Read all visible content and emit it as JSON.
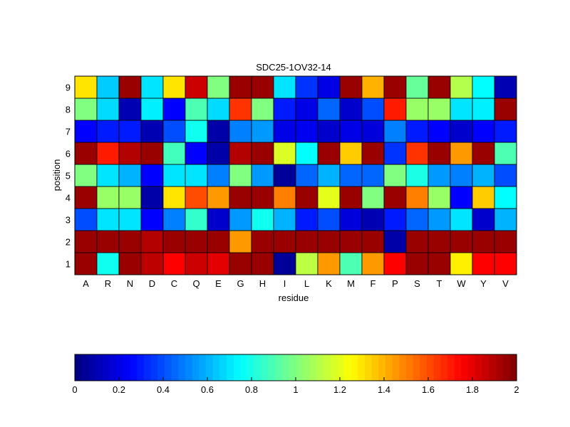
{
  "chart_data": [
    {
      "type": "heatmap",
      "title": "SDC25-1OV32-14",
      "xlabel": "residue",
      "ylabel": "position",
      "x_categories": [
        "A",
        "R",
        "N",
        "D",
        "C",
        "Q",
        "E",
        "G",
        "H",
        "I",
        "L",
        "K",
        "M",
        "F",
        "P",
        "S",
        "T",
        "W",
        "Y",
        "V"
      ],
      "y_categories": [
        "1",
        "2",
        "3",
        "4",
        "5",
        "6",
        "7",
        "8",
        "9"
      ],
      "colormap": "jet",
      "clim": [
        0,
        2
      ],
      "values": [
        [
          1.95,
          0.78,
          1.95,
          1.88,
          1.75,
          1.85,
          1.8,
          1.95,
          1.95,
          0.05,
          1.12,
          1.45,
          0.9,
          1.45,
          1.75,
          1.95,
          1.95,
          1.28,
          1.75,
          1.75
        ],
        [
          1.95,
          1.95,
          1.95,
          1.9,
          1.95,
          1.95,
          1.95,
          1.45,
          1.95,
          1.95,
          1.95,
          1.95,
          1.95,
          1.95,
          0.08,
          1.95,
          1.95,
          1.95,
          1.95,
          1.95
        ],
        [
          0.4,
          0.7,
          0.7,
          0.25,
          0.5,
          0.85,
          0.15,
          0.55,
          0.78,
          0.6,
          0.3,
          0.4,
          0.18,
          0.1,
          0.3,
          0.45,
          0.55,
          0.7,
          0.15,
          0.6
        ],
        [
          1.95,
          1.05,
          1.05,
          0.08,
          1.3,
          1.6,
          1.45,
          1.95,
          1.95,
          1.5,
          1.95,
          1.2,
          1.95,
          1.0,
          1.95,
          1.5,
          1.05,
          0.25,
          1.35,
          0.75
        ],
        [
          1.0,
          0.7,
          0.6,
          0.25,
          0.7,
          0.7,
          0.5,
          1.0,
          0.55,
          0.05,
          0.45,
          0.6,
          0.45,
          0.45,
          1.0,
          0.8,
          0.55,
          0.5,
          0.6,
          0.4
        ],
        [
          1.95,
          1.7,
          1.9,
          1.95,
          0.88,
          0.25,
          0.08,
          1.9,
          1.95,
          1.18,
          0.75,
          1.95,
          1.35,
          1.95,
          0.35,
          1.65,
          1.95,
          1.45,
          1.95,
          0.9
        ],
        [
          0.25,
          0.3,
          0.3,
          0.1,
          0.4,
          0.78,
          0.08,
          0.5,
          0.55,
          0.2,
          0.22,
          0.15,
          0.2,
          0.18,
          0.5,
          0.3,
          0.25,
          0.15,
          0.25,
          0.3
        ],
        [
          1.0,
          0.68,
          0.1,
          0.72,
          0.25,
          0.9,
          0.68,
          1.65,
          1.0,
          0.3,
          0.2,
          0.45,
          0.15,
          0.4,
          1.7,
          1.05,
          1.05,
          0.7,
          0.72,
          1.95
        ],
        [
          1.3,
          0.65,
          1.95,
          0.7,
          1.3,
          1.85,
          1.0,
          1.95,
          1.95,
          0.7,
          0.35,
          0.2,
          1.95,
          1.4,
          1.95,
          0.95,
          1.95,
          1.1,
          0.75,
          0.1
        ]
      ]
    },
    {
      "type": "colorbar",
      "range": [
        0,
        2
      ],
      "ticks": [
        "0",
        "0.2",
        "0.4",
        "0.6",
        "0.8",
        "1",
        "1.2",
        "1.4",
        "1.6",
        "1.8",
        "2"
      ]
    }
  ]
}
